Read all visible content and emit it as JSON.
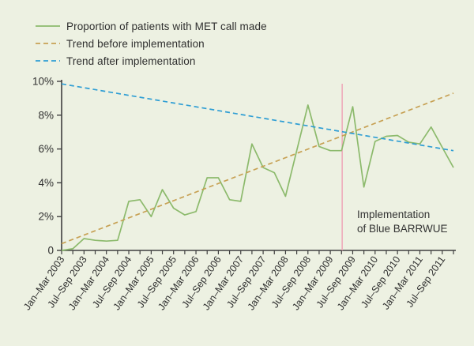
{
  "page": {
    "background_color": "#edf1e2",
    "text_color": "#2f2f2f"
  },
  "legend": {
    "items": [
      {
        "label": "Proportion of patients with MET call made",
        "color": "#8cba6c",
        "style": "solid"
      },
      {
        "label": "Trend before implementation",
        "color": "#c7a154",
        "style": "dashed"
      },
      {
        "label": "Trend after implementation",
        "color": "#2f9ed4",
        "style": "dashed"
      }
    ]
  },
  "annotation": {
    "line1": "Implementation",
    "line2": "of Blue BARRWUE"
  },
  "chart_data": {
    "type": "line",
    "title": "",
    "xlabel": "",
    "ylabel": "",
    "ylim": [
      0,
      10
    ],
    "grid": false,
    "legend_position": "top-left",
    "categories": [
      "Jan–Mar 2003",
      "",
      "Jul–Sep 2003",
      "",
      "Jan–Mar 2004",
      "",
      "Jul–Sep 2004",
      "",
      "Jan–Mar 2005",
      "",
      "Jul–Sep 2005",
      "",
      "Jan–Mar 2006",
      "",
      "Jul–Sep 2006",
      "",
      "Jan–Mar 2007",
      "",
      "Jul–Sep 2007",
      "",
      "Jan–Mar 2008",
      "",
      "Jul–Sep 2008",
      "",
      "Jan–Mar 2009",
      "",
      "Jul–Sep 2009",
      "",
      "Jan–Mar 2010",
      "",
      "Jul–Sep 2010",
      "",
      "Jan–Mar 2011",
      "",
      "Jul–Sep 2011",
      ""
    ],
    "x_note": "quarterly data, every second quarter labelled",
    "y_axis": {
      "ticks": [
        0,
        2,
        4,
        6,
        8,
        10
      ],
      "tick_labels": [
        "0",
        "2%",
        "4%",
        "6%",
        "8%",
        "10%"
      ]
    },
    "series": [
      {
        "name": "Proportion of patients with MET call made",
        "kind": "data",
        "color": "#8cba6c",
        "dash": "",
        "values": [
          0,
          0.1,
          0.7,
          0.6,
          0.55,
          0.6,
          2.9,
          3.0,
          2.0,
          3.6,
          2.5,
          2.1,
          2.3,
          4.3,
          4.3,
          3.0,
          2.9,
          6.3,
          4.9,
          4.6,
          3.2,
          5.9,
          8.6,
          6.15,
          5.9,
          5.9,
          8.5,
          3.75,
          6.45,
          6.75,
          6.8,
          6.4,
          6.3,
          7.3,
          6.1,
          4.9
        ]
      },
      {
        "name": "Trend before implementation",
        "kind": "trend",
        "color": "#c7a154",
        "dash": "6,4",
        "start_value": 0.4,
        "end_value": 9.3
      },
      {
        "name": "Trend after implementation",
        "kind": "trend",
        "color": "#2f9ed4",
        "dash": "6,4",
        "start_value": 9.85,
        "end_value": 5.9
      }
    ],
    "implementation_marker": {
      "label": "Implementation of Blue BARRWUE",
      "at_x_label": "Jul–Sep 2009",
      "x_fraction": 0.716,
      "color": "#efa0b5"
    },
    "axis_color": "#3f3f3f",
    "tick_label_color": "#2f2f2f"
  }
}
